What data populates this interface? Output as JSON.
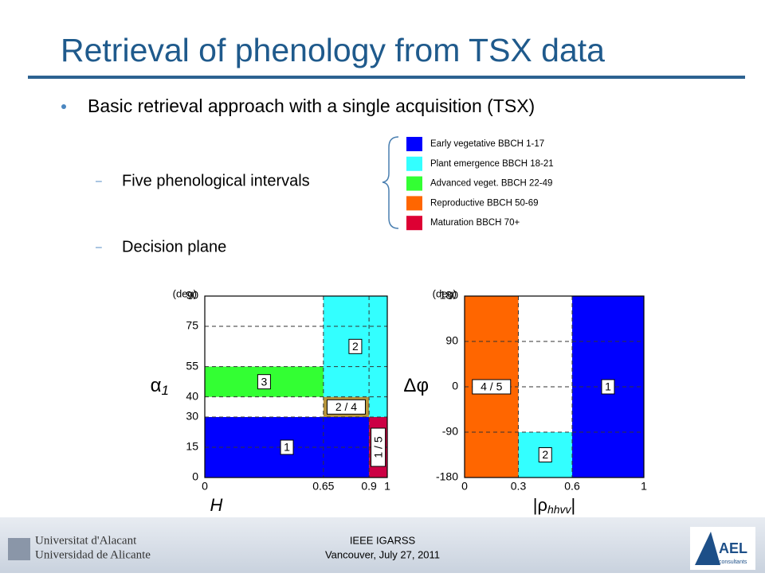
{
  "slide": {
    "title": "Retrieval of phenology from TSX data",
    "bullet": "Basic retrieval approach with a single acquisition (TSX)",
    "sub_bullets": [
      "Five phenological intervals",
      "Decision plane"
    ]
  },
  "legend": [
    {
      "label": "Early vegetative BBCH 1-17",
      "color": "#0000ff"
    },
    {
      "label": "Plant emergence BBCH 18-21",
      "color": "#33ffff"
    },
    {
      "label": "Advanced veget. BBCH 22-49",
      "color": "#33ff33"
    },
    {
      "label": "Reproductive BBCH 50-69",
      "color": "#ff6600"
    },
    {
      "label": "Maturation BBCH 70+",
      "color": "#dd0033"
    }
  ],
  "chart_data": [
    {
      "type": "region",
      "unit": "(deg)",
      "ylabel": {
        "symbol": "α",
        "sub": "1"
      },
      "xlabel": {
        "symbol": "H"
      },
      "xlim": [
        0,
        1
      ],
      "ylim": [
        0,
        90
      ],
      "xticks": [
        0,
        0.65,
        0.9,
        1
      ],
      "yticks": [
        0,
        15,
        30,
        40,
        55,
        75,
        90
      ],
      "grid": "dashed",
      "regions": [
        {
          "label": "1",
          "x": [
            0,
            0.9
          ],
          "y": [
            0,
            30
          ],
          "color": "#0000ff"
        },
        {
          "label": "1 / 5",
          "x": [
            0.9,
            1
          ],
          "y": [
            0,
            30
          ],
          "color": "#cc0044",
          "rotated": true
        },
        {
          "label": "2 / 4",
          "x": [
            0.65,
            0.9
          ],
          "y": [
            30,
            40
          ],
          "color": "#b8963c"
        },
        {
          "label": null,
          "x": [
            0.9,
            1
          ],
          "y": [
            30,
            40
          ],
          "color": "#33ffff"
        },
        {
          "label": "3",
          "x": [
            0,
            0.65
          ],
          "y": [
            40,
            55
          ],
          "color": "#33ff33"
        },
        {
          "label": "2",
          "x": [
            0.65,
            1
          ],
          "y": [
            40,
            90
          ],
          "color": "#33ffff"
        }
      ]
    },
    {
      "type": "region",
      "unit": "(deg)",
      "ylabel": {
        "symbol": "Δφ"
      },
      "xlabel": {
        "symbol": "|ρ",
        "sub": "hhvv",
        "end": "|"
      },
      "xlim": [
        0,
        1
      ],
      "ylim": [
        -180,
        180
      ],
      "xticks": [
        0,
        0.3,
        0.6,
        1
      ],
      "yticks": [
        -180,
        -90,
        0,
        90,
        180
      ],
      "grid": "dashed",
      "regions": [
        {
          "label": "4 / 5",
          "x": [
            0,
            0.3
          ],
          "y": [
            -180,
            180
          ],
          "color": "#ff6600"
        },
        {
          "label": "2",
          "x": [
            0.3,
            0.6
          ],
          "y": [
            -180,
            -90
          ],
          "color": "#33ffff"
        },
        {
          "label": "1",
          "x": [
            0.6,
            1
          ],
          "y": [
            -180,
            180
          ],
          "color": "#0000ff"
        }
      ]
    }
  ],
  "footer": {
    "conference": "IEEE IGARSS",
    "date": "Vancouver, July 27, 2011",
    "university_ca": "Universitat d'Alacant",
    "university_es": "Universidad de Alicante",
    "company": "AEL",
    "company_sub": "consultants"
  }
}
